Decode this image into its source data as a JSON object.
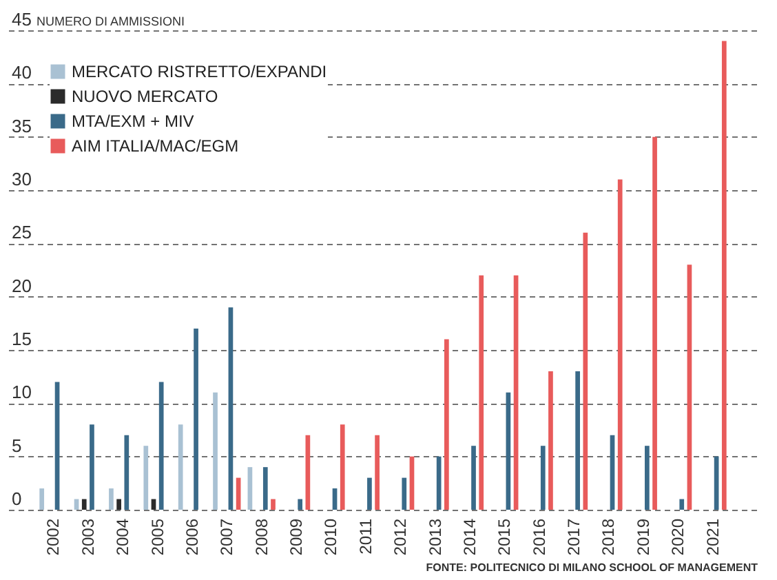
{
  "chart_data": {
    "type": "bar",
    "ylabel": "NUMERO DI AMMISSIONI",
    "categories": [
      "2002",
      "2003",
      "2004",
      "2005",
      "2006",
      "2007",
      "2008",
      "2009",
      "2010",
      "2011",
      "2012",
      "2013",
      "2014",
      "2015",
      "2016",
      "2017",
      "2018",
      "2019",
      "2020",
      "2021"
    ],
    "series": [
      {
        "name": "MERCATO RISTRETTO/EXPANDI",
        "color": "#a9c1d3",
        "values": [
          2,
          1,
          2,
          6,
          8,
          11,
          4,
          null,
          null,
          null,
          null,
          null,
          null,
          null,
          null,
          null,
          null,
          null,
          null,
          null
        ]
      },
      {
        "name": "NUOVO MERCATO",
        "color": "#2b2b2b",
        "values": [
          null,
          1,
          1,
          1,
          null,
          null,
          null,
          null,
          null,
          null,
          null,
          null,
          null,
          null,
          null,
          null,
          null,
          null,
          null,
          null
        ]
      },
      {
        "name": "MTA/EXM + MIV",
        "color": "#3a6a89",
        "values": [
          12,
          8,
          7,
          12,
          17,
          19,
          4,
          1,
          2,
          3,
          3,
          5,
          6,
          11,
          6,
          13,
          7,
          6,
          1,
          5
        ]
      },
      {
        "name": "AIM ITALIA/MAC/EGM",
        "color": "#e85b5b",
        "values": [
          null,
          null,
          null,
          null,
          null,
          3,
          1,
          7,
          8,
          7,
          5,
          16,
          22,
          22,
          13,
          26,
          31,
          35,
          23,
          44
        ]
      }
    ],
    "ylim": [
      0,
      45
    ],
    "yticks": [
      0,
      5,
      10,
      15,
      20,
      25,
      30,
      35,
      40,
      45
    ],
    "grid": true,
    "legend": "top left",
    "annotations": [
      "FONTE: POLITECNICO DI MILANO SCHOOL OF MANAGEMENT"
    ]
  }
}
